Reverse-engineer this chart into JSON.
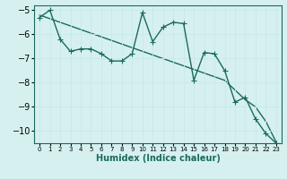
{
  "xlabel": "Humidex (Indice chaleur)",
  "ylabel": "",
  "bg_color": "#d6f0f0",
  "grid_color": "#c8e8e8",
  "line_color": "#1a6b5a",
  "marker": "+",
  "x_data": [
    0,
    1,
    2,
    3,
    4,
    5,
    6,
    7,
    8,
    9,
    10,
    11,
    12,
    13,
    14,
    15,
    16,
    17,
    18,
    19,
    20,
    21,
    22,
    23
  ],
  "y_curve": [
    -5.3,
    -5.0,
    -6.2,
    -6.7,
    -6.6,
    -6.6,
    -6.8,
    -7.1,
    -7.1,
    -6.8,
    -5.1,
    -6.3,
    -5.7,
    -5.5,
    -5.55,
    -7.9,
    -6.75,
    -6.8,
    -7.5,
    -8.8,
    -8.6,
    -9.5,
    -10.1,
    -10.5
  ],
  "y_line": [
    -5.2,
    -5.35,
    -5.5,
    -5.65,
    -5.8,
    -5.95,
    -6.1,
    -6.25,
    -6.4,
    -6.55,
    -6.7,
    -6.85,
    -7.0,
    -7.15,
    -7.3,
    -7.45,
    -7.6,
    -7.75,
    -7.9,
    -8.3,
    -8.7,
    -9.0,
    -9.6,
    -10.45
  ],
  "xlim": [
    -0.5,
    23.5
  ],
  "ylim": [
    -10.5,
    -4.8
  ],
  "yticks": [
    -5,
    -6,
    -7,
    -8,
    -9,
    -10
  ],
  "xticks": [
    0,
    1,
    2,
    3,
    4,
    5,
    6,
    7,
    8,
    9,
    10,
    11,
    12,
    13,
    14,
    15,
    16,
    17,
    18,
    19,
    20,
    21,
    22,
    23
  ],
  "xlabel_fontsize": 7,
  "tick_fontsize": 6,
  "linewidth": 1.0,
  "markersize": 4
}
